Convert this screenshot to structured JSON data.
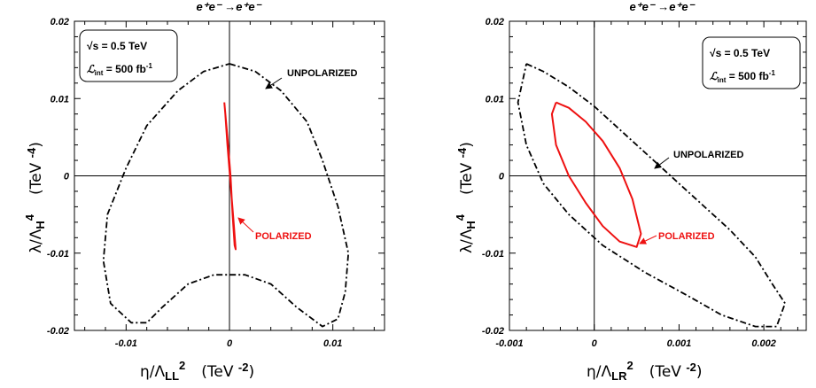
{
  "chart_data": [
    {
      "type": "line",
      "title": "e⁺e⁻ →e⁺e⁻",
      "xlabel": "η/ΛLL²   (TeV ⁻²)",
      "xlabel_parts": {
        "base": "η/Λ",
        "sub": "LL",
        "sup": "2",
        "unit": "(TeV ",
        "unit_sup": "-2",
        "unit_end": ")"
      },
      "ylabel_parts": {
        "base": "λ/Λ",
        "sub": "H",
        "sup": "4",
        "unit": "(TeV ",
        "unit_sup": "-4",
        "unit_end": ")"
      },
      "xlim": [
        -0.015,
        0.015
      ],
      "ylim": [
        -0.02,
        0.02
      ],
      "xticks": [
        -0.01,
        0,
        0.01
      ],
      "xtick_labels": [
        "-0.01",
        "0",
        "0.01"
      ],
      "yticks": [
        -0.02,
        -0.01,
        0,
        0.01,
        0.02
      ],
      "ytick_labels": [
        "-0.02",
        "-0.01",
        "0",
        "0.01",
        "0.02"
      ],
      "infobox": {
        "line1": "√s = 0.5 TeV",
        "line2_base": "ℒ",
        "line2_sub": "int",
        "line2_rest": " = 500 fb",
        "line2_sup": "-1"
      },
      "series": [
        {
          "name": "UNPOLARIZED",
          "color": "#000000",
          "style": "dashdot",
          "x": [
            0.0,
            0.0025,
            0.005,
            0.0075,
            0.009,
            0.0105,
            0.0115,
            0.0112,
            0.0105,
            0.009,
            0.0065,
            0.004,
            0.0015,
            0.0,
            -0.0015,
            -0.004,
            -0.0065,
            -0.008,
            -0.0095,
            -0.0115,
            -0.0122,
            -0.0118,
            -0.01,
            -0.008,
            -0.005,
            -0.0025,
            0.0
          ],
          "y": [
            0.0145,
            0.0135,
            0.011,
            0.007,
            0.002,
            -0.004,
            -0.01,
            -0.015,
            -0.0185,
            -0.0195,
            -0.017,
            -0.014,
            -0.0128,
            -0.0128,
            -0.0128,
            -0.014,
            -0.017,
            -0.019,
            -0.019,
            -0.0165,
            -0.011,
            -0.005,
            0.001,
            0.0065,
            0.011,
            0.0135,
            0.0145
          ]
        },
        {
          "name": "POLARIZED",
          "color": "#ee1111",
          "style": "solid",
          "x": [
            -0.0005,
            -0.0002,
            0.0001,
            0.0003,
            0.0005,
            0.0006,
            0.0004,
            0.0001,
            -0.0002,
            -0.0004,
            -0.0005
          ],
          "y": [
            0.0095,
            0.005,
            0.0,
            -0.005,
            -0.009,
            -0.0095,
            -0.006,
            -0.001,
            0.004,
            0.008,
            0.0095
          ]
        }
      ],
      "annotations": [
        {
          "text": "UNPOLARIZED",
          "color": "#000000"
        },
        {
          "text": "POLARIZED",
          "color": "#ee1111"
        }
      ]
    },
    {
      "type": "line",
      "title": "e⁺e⁻ →e⁺e⁻",
      "xlabel": "η/ΛLR²   (TeV ⁻²)",
      "xlabel_parts": {
        "base": "η/Λ",
        "sub": "LR",
        "sup": "2",
        "unit": "(TeV ",
        "unit_sup": "-2",
        "unit_end": ")"
      },
      "ylabel_parts": {
        "base": "λ/Λ",
        "sub": "H",
        "sup": "4",
        "unit": "(TeV ",
        "unit_sup": "-4",
        "unit_end": ")"
      },
      "xlim": [
        -0.001,
        0.0025
      ],
      "ylim": [
        -0.02,
        0.02
      ],
      "xticks": [
        -0.001,
        0,
        0.001,
        0.002
      ],
      "xtick_labels": [
        "-0.001",
        "0",
        "0.001",
        "0.002"
      ],
      "yticks": [
        -0.02,
        -0.01,
        0,
        0.01,
        0.02
      ],
      "ytick_labels": [
        "-0.02",
        "-0.01",
        "0",
        "0.01",
        "0.02"
      ],
      "infobox": {
        "line1": "√s = 0.5 TeV",
        "line2_base": "ℒ",
        "line2_sub": "int",
        "line2_rest": " = 500 fb",
        "line2_sup": "-1"
      },
      "series": [
        {
          "name": "UNPOLARIZED",
          "color": "#000000",
          "style": "dashdot",
          "x": [
            -0.0008,
            -0.0006,
            -0.0003,
            0.0,
            0.0004,
            0.0008,
            0.0012,
            0.0016,
            0.0019,
            0.0021,
            0.00225,
            0.00215,
            0.0019,
            0.0015,
            0.0011,
            0.0006,
            0.0001,
            -0.0003,
            -0.0006,
            -0.0008,
            -0.0009,
            -0.0008
          ],
          "y": [
            0.0145,
            0.0135,
            0.0115,
            0.009,
            0.005,
            0.001,
            -0.003,
            -0.007,
            -0.0105,
            -0.014,
            -0.0165,
            -0.0195,
            -0.0195,
            -0.018,
            -0.0155,
            -0.0125,
            -0.009,
            -0.005,
            -0.001,
            0.004,
            0.0095,
            0.0145
          ]
        },
        {
          "name": "POLARIZED",
          "color": "#ee1111",
          "style": "solid",
          "x": [
            -0.00045,
            -0.0003,
            -0.0001,
            0.0001,
            0.0003,
            0.00045,
            0.00055,
            0.0005,
            0.0003,
            0.0001,
            -0.0001,
            -0.0003,
            -0.00045,
            -0.0005,
            -0.00045
          ],
          "y": [
            0.0095,
            0.0088,
            0.007,
            0.0045,
            0.001,
            -0.003,
            -0.0075,
            -0.0092,
            -0.0085,
            -0.0065,
            -0.0035,
            0.0,
            0.004,
            0.008,
            0.0095
          ]
        }
      ],
      "annotations": [
        {
          "text": "UNPOLARIZED",
          "color": "#000000"
        },
        {
          "text": "POLARIZED",
          "color": "#ee1111"
        }
      ]
    }
  ]
}
